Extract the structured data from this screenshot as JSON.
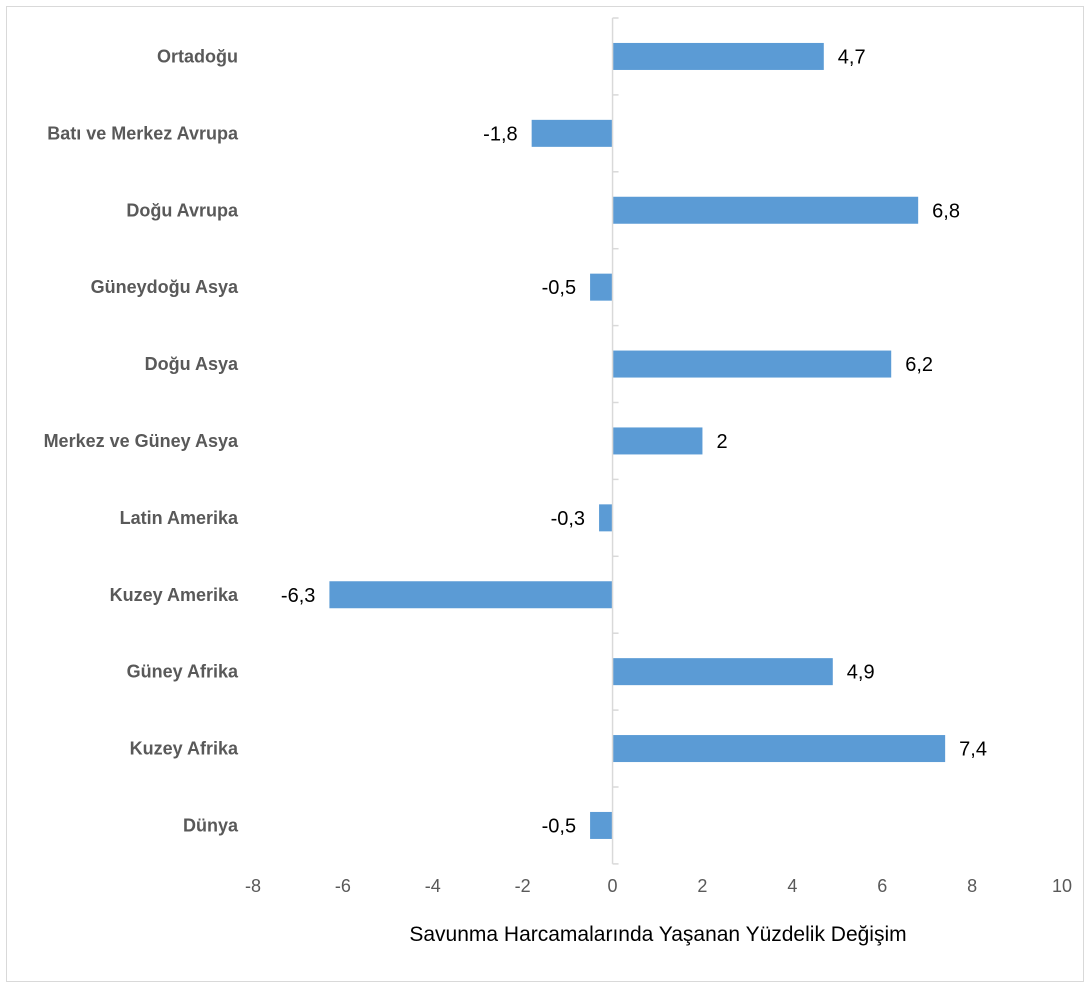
{
  "chart_data": {
    "type": "bar",
    "orientation": "horizontal",
    "categories": [
      "Ortadoğu",
      "Batı ve Merkez Avrupa",
      "Doğu Avrupa",
      "Güneydoğu Asya",
      "Doğu Asya",
      "Merkez ve Güney Asya",
      "Latin Amerika",
      "Kuzey Amerika",
      "Güney Afrika",
      "Kuzey Afrika",
      "Dünya"
    ],
    "values": [
      4.7,
      -1.8,
      6.8,
      -0.5,
      6.2,
      2,
      -0.3,
      -6.3,
      4.9,
      7.4,
      -0.5
    ],
    "data_labels": [
      "4,7",
      "-1,8",
      "6,8",
      "-0,5",
      "6,2",
      "2",
      "-0,3",
      "-6,3",
      "4,9",
      "7,4",
      "-0,5"
    ],
    "xlim": [
      -8,
      10
    ],
    "x_ticks": [
      -8,
      -6,
      -4,
      -2,
      0,
      2,
      4,
      6,
      8,
      10
    ],
    "xlabel": "Savunma Harcamalarında Yaşanan Yüzdelik Değişim",
    "bar_color": "#5b9bd5",
    "grid": false,
    "legend": "none"
  }
}
